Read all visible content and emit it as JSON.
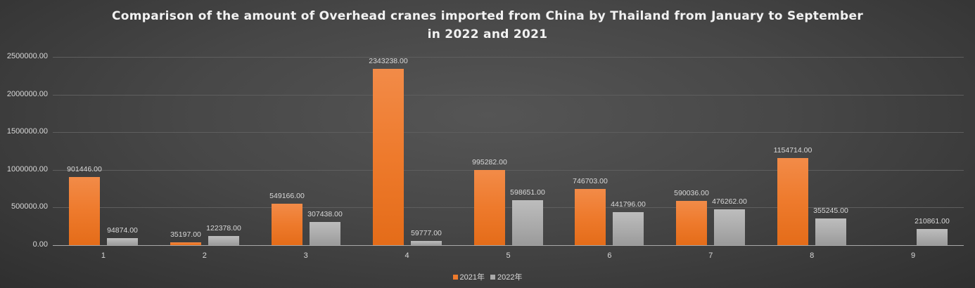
{
  "title_line1": "Comparison of the amount of Overhead cranes imported from China by Thailand from January to September",
  "title_line2": "in 2022 and 2021",
  "y_axis": {
    "ticks": [
      "0.00",
      "500000.00",
      "1000000.00",
      "1500000.00",
      "2000000.00",
      "2500000.00"
    ],
    "tick_values": [
      0,
      500000,
      1000000,
      1500000,
      2000000,
      2500000
    ]
  },
  "legend": [
    {
      "label": "2021年",
      "color": "#ee7a2c"
    },
    {
      "label": "2022年",
      "color": "#a9a9a9"
    }
  ],
  "colors": {
    "series_2021": "#ee7a2c",
    "series_2022": "#a9a9a9",
    "background": "#474747"
  },
  "chart_data": {
    "type": "bar",
    "title": "Comparison of the amount of Overhead cranes imported from China by Thailand from January to September in 2022 and 2021",
    "xlabel": "",
    "ylabel": "",
    "categories": [
      "1",
      "2",
      "3",
      "4",
      "5",
      "6",
      "7",
      "8",
      "9"
    ],
    "series": [
      {
        "name": "2021年",
        "values": [
          901446,
          35197,
          549166,
          2343238,
          995282,
          746703,
          590036,
          1154714,
          null
        ],
        "labels": [
          "901446.00",
          "35197.00",
          "549166.00",
          "2343238.00",
          "995282.00",
          "746703.00",
          "590036.00",
          "1154714.00",
          ""
        ]
      },
      {
        "name": "2022年",
        "values": [
          94874,
          122378,
          307438,
          59777,
          598651,
          441796,
          476262,
          355245,
          210861
        ],
        "labels": [
          "94874.00",
          "122378.00",
          "307438.00",
          "59777.00",
          "598651.00",
          "441796.00",
          "476262.00",
          "355245.00",
          "210861.00"
        ]
      }
    ],
    "ylim": [
      0,
      2500000
    ],
    "grid": true,
    "legend_position": "bottom"
  }
}
